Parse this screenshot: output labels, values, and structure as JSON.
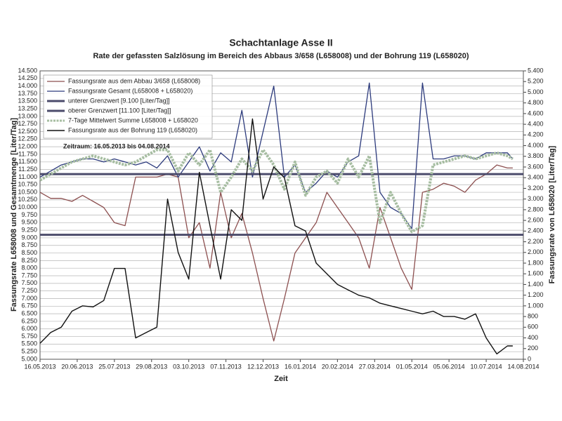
{
  "chart_data": {
    "type": "line",
    "title": "Schachtanlage Asse II",
    "subtitle": "Rate der gefassten Salzlösung im Bereich des Abbaus 3/658 (L658008) und der Bohrung 119 (L658020)",
    "annotation": "Zeitraum: 16.05.2013 bis  04.08.2014",
    "xlabel": "Zeit",
    "ylabel": "Fassungsrate L658008 und Gesamtmenge [Liter/Tag]",
    "y2label": "Fassungsrate von L658020 [Liter/Tag]",
    "grid": true,
    "legend": "upper-left",
    "x": [
      "2013-05-16",
      "2013-05-26",
      "2013-06-05",
      "2013-06-15",
      "2013-06-25",
      "2013-07-05",
      "2013-07-15",
      "2013-07-25",
      "2013-08-04",
      "2013-08-14",
      "2013-08-24",
      "2013-09-03",
      "2013-09-13",
      "2013-09-23",
      "2013-10-03",
      "2013-10-13",
      "2013-10-23",
      "2013-11-02",
      "2013-11-12",
      "2013-11-22",
      "2013-12-02",
      "2013-12-12",
      "2013-12-22",
      "2014-01-01",
      "2014-01-11",
      "2014-01-21",
      "2014-01-31",
      "2014-02-10",
      "2014-02-20",
      "2014-03-02",
      "2014-03-12",
      "2014-03-22",
      "2014-04-01",
      "2014-04-11",
      "2014-04-21",
      "2014-05-01",
      "2014-05-11",
      "2014-05-21",
      "2014-05-31",
      "2014-06-10",
      "2014-06-20",
      "2014-06-30",
      "2014-07-10",
      "2014-07-20",
      "2014-07-30",
      "2014-08-04"
    ],
    "xlim": [
      "2013-05-16",
      "2014-08-14"
    ],
    "xticks": [
      {
        "value": "2013-05-16",
        "label": "16.05.2013"
      },
      {
        "value": "2013-06-20",
        "label": "20.06.2013"
      },
      {
        "value": "2013-07-25",
        "label": "25.07.2013"
      },
      {
        "value": "2013-08-29",
        "label": "29.08.2013"
      },
      {
        "value": "2013-10-03",
        "label": "03.10.2013"
      },
      {
        "value": "2013-11-07",
        "label": "07.11.2013"
      },
      {
        "value": "2013-12-12",
        "label": "12.12.2013"
      },
      {
        "value": "2014-01-16",
        "label": "16.01.2014"
      },
      {
        "value": "2014-02-20",
        "label": "20.02.2014"
      },
      {
        "value": "2014-03-27",
        "label": "27.03.2014"
      },
      {
        "value": "2014-05-01",
        "label": "01.05.2014"
      },
      {
        "value": "2014-06-05",
        "label": "05.06.2014"
      },
      {
        "value": "2014-07-10",
        "label": "10.07.2014"
      },
      {
        "value": "2014-08-14",
        "label": "14.08.2014"
      }
    ],
    "ylim": [
      5,
      14.5
    ],
    "yticks": [
      {
        "value": 5,
        "label": "5.000"
      },
      {
        "value": 5.25,
        "label": "5.250"
      },
      {
        "value": 5.5,
        "label": "5.500"
      },
      {
        "value": 5.75,
        "label": "5.750"
      },
      {
        "value": 6,
        "label": "6.000"
      },
      {
        "value": 6.25,
        "label": "6.250"
      },
      {
        "value": 6.5,
        "label": "6.500"
      },
      {
        "value": 6.75,
        "label": "6.750"
      },
      {
        "value": 7,
        "label": "7.000"
      },
      {
        "value": 7.25,
        "label": "7.250"
      },
      {
        "value": 7.5,
        "label": "7.500"
      },
      {
        "value": 7.75,
        "label": "7.750"
      },
      {
        "value": 8,
        "label": "8.000"
      },
      {
        "value": 8.25,
        "label": "8.250"
      },
      {
        "value": 8.5,
        "label": "8.500"
      },
      {
        "value": 8.75,
        "label": "8.750"
      },
      {
        "value": 9,
        "label": "9.000"
      },
      {
        "value": 9.25,
        "label": "9.250"
      },
      {
        "value": 9.5,
        "label": "9.500"
      },
      {
        "value": 9.75,
        "label": "9.750"
      },
      {
        "value": 10,
        "label": "10.000"
      },
      {
        "value": 10.25,
        "label": "10.250"
      },
      {
        "value": 10.5,
        "label": "10.500"
      },
      {
        "value": 10.75,
        "label": "10.750"
      },
      {
        "value": 11,
        "label": "11.000"
      },
      {
        "value": 11.25,
        "label": "11.250"
      },
      {
        "value": 11.5,
        "label": "11.500"
      },
      {
        "value": 11.75,
        "label": "11.750"
      },
      {
        "value": 12,
        "label": "12.000"
      },
      {
        "value": 12.25,
        "label": "12.250"
      },
      {
        "value": 12.5,
        "label": "12.500"
      },
      {
        "value": 12.75,
        "label": "12.750"
      },
      {
        "value": 13,
        "label": "13.000"
      },
      {
        "value": 13.25,
        "label": "13.250"
      },
      {
        "value": 13.5,
        "label": "13.500"
      },
      {
        "value": 13.75,
        "label": "13.750"
      },
      {
        "value": 14,
        "label": "14.000"
      },
      {
        "value": 14.25,
        "label": "14.250"
      },
      {
        "value": 14.5,
        "label": "14.500"
      }
    ],
    "y2lim": [
      0,
      5400
    ],
    "y2ticks": [
      0,
      200,
      400,
      600,
      800,
      {
        "value": 1000,
        "label": "1.000"
      },
      {
        "value": 1200,
        "label": "1.200"
      },
      {
        "value": 1400,
        "label": "1.400"
      },
      {
        "value": 1600,
        "label": "1.600"
      },
      {
        "value": 1800,
        "label": "1.800"
      },
      {
        "value": 2000,
        "label": "2.000"
      },
      {
        "value": 2200,
        "label": "2.200"
      },
      {
        "value": 2400,
        "label": "2.400"
      },
      {
        "value": 2600,
        "label": "2.600"
      },
      {
        "value": 2800,
        "label": "2.800"
      },
      {
        "value": 3000,
        "label": "3.000"
      },
      {
        "value": 3200,
        "label": "3.200"
      },
      {
        "value": 3400,
        "label": "3.400"
      },
      {
        "value": 3600,
        "label": "3.600"
      },
      {
        "value": 3800,
        "label": "3.800"
      },
      {
        "value": 4000,
        "label": "4.000"
      },
      {
        "value": 4200,
        "label": "4.200"
      },
      {
        "value": 4400,
        "label": "4.400"
      },
      {
        "value": 4600,
        "label": "4.600"
      },
      {
        "value": 4800,
        "label": "4.800"
      },
      {
        "value": 5000,
        "label": "5.000"
      },
      {
        "value": 5200,
        "label": "5.200"
      },
      {
        "value": 5400,
        "label": "5.400"
      }
    ],
    "series": [
      {
        "name": "Fassungsrate aus dem Abbau 3/658 (L658008)",
        "color": "#8c4f4f",
        "values": [
          10.5,
          10.3,
          10.3,
          10.2,
          10.4,
          10.2,
          10.0,
          9.5,
          9.4,
          11.0,
          11.0,
          11.0,
          11.1,
          11.0,
          9.0,
          9.5,
          8.0,
          10.5,
          9.0,
          9.8,
          8.5,
          7.0,
          5.6,
          7.0,
          8.5,
          9.0,
          9.5,
          10.5,
          10.0,
          9.5,
          9.0,
          8.0,
          10.0,
          9.0,
          8.0,
          7.3,
          10.5,
          10.6,
          10.8,
          10.7,
          10.5,
          10.9,
          11.1,
          11.4,
          11.3,
          11.3
        ]
      },
      {
        "name": "Fassungsrate Gesamt (L658008 + L658020)",
        "color": "#2c3a7c",
        "values": [
          11.0,
          11.2,
          11.4,
          11.5,
          11.6,
          11.6,
          11.5,
          11.6,
          11.5,
          11.4,
          11.5,
          11.3,
          11.7,
          11.0,
          11.5,
          12.0,
          11.2,
          11.8,
          11.5,
          13.2,
          11.0,
          12.5,
          14.0,
          11.0,
          11.4,
          10.5,
          10.8,
          11.2,
          11.0,
          11.5,
          11.7,
          14.1,
          10.5,
          10.0,
          9.8,
          9.3,
          14.1,
          11.6,
          11.6,
          11.7,
          11.7,
          11.6,
          11.8,
          11.8,
          11.8,
          11.6
        ]
      },
      {
        "name": "unterer Grenzwert [9.100 [Liter/Tag]]",
        "color": "#4b4b6b",
        "value": 9.1
      },
      {
        "name": "oberer Grenzwert [11.100 [Liter/Tag]]",
        "color": "#4b4b6b",
        "value": 11.1
      },
      {
        "name": "7-Tage Mittelwert Summe L658008 + L658020",
        "color": "#a6bda1",
        "values": [
          10.9,
          11.1,
          11.3,
          11.5,
          11.6,
          11.7,
          11.6,
          11.5,
          11.4,
          11.5,
          11.7,
          11.9,
          11.9,
          11.2,
          11.8,
          11.4,
          11.9,
          10.5,
          11.0,
          11.6,
          11.2,
          11.9,
          11.4,
          10.6,
          11.5,
          10.4,
          11.0,
          11.2,
          10.8,
          11.6,
          11.0,
          11.7,
          9.5,
          10.5,
          9.8,
          9.2,
          9.4,
          11.4,
          11.5,
          11.6,
          11.7,
          11.6,
          11.7,
          11.8,
          11.7,
          11.6
        ]
      },
      {
        "name": "Fassungsrate aus der Bohrung 119 (L658020)",
        "color": "#111111",
        "axis": "y2",
        "values": [
          300,
          500,
          600,
          900,
          1000,
          980,
          1100,
          1700,
          1700,
          400,
          500,
          600,
          3000,
          2000,
          1500,
          3500,
          2500,
          1500,
          2800,
          2600,
          4500,
          3000,
          3600,
          3400,
          2500,
          2400,
          1800,
          1600,
          1400,
          1300,
          1200,
          1150,
          1050,
          1000,
          950,
          900,
          850,
          900,
          800,
          800,
          750,
          850,
          400,
          100,
          250,
          250
        ]
      }
    ]
  }
}
